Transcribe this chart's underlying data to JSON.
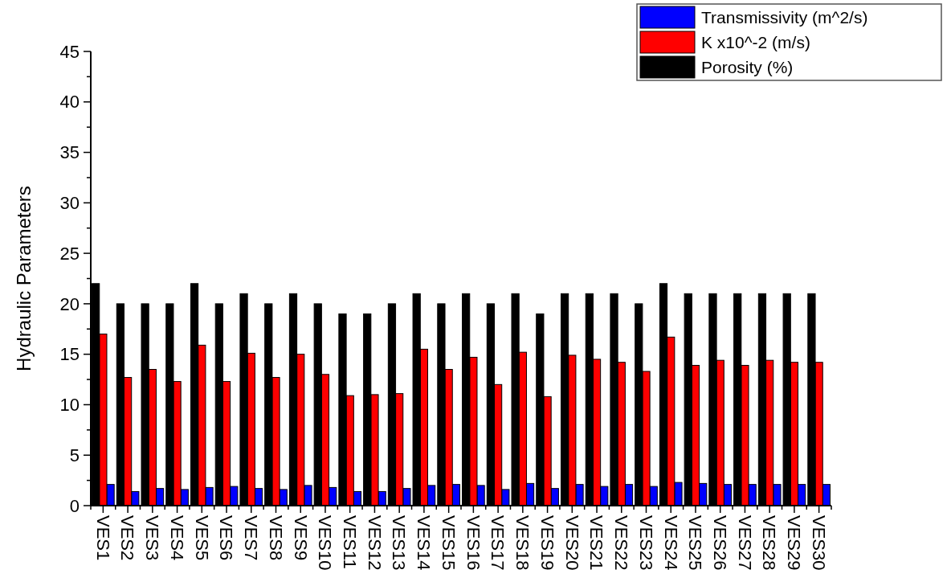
{
  "chart_data": {
    "type": "bar",
    "ylabel": "Hydraulic Parameters",
    "categories": [
      "VES1",
      "VES2",
      "VES3",
      "VES4",
      "VES5",
      "VES6",
      "VES7",
      "VES8",
      "VES9",
      "VES10",
      "VES11",
      "VES12",
      "VES13",
      "VES14",
      "VES15",
      "VES16",
      "VES17",
      "VES18",
      "VES19",
      "VES20",
      "VES21",
      "VES22",
      "VES23",
      "VES24",
      "VES25",
      "VES26",
      "VES27",
      "VES28",
      "VES29",
      "VES30"
    ],
    "series": [
      {
        "name": "Transmissivity (m^2/s)",
        "color": "#0000ff",
        "values": [
          2.1,
          1.4,
          1.7,
          1.6,
          1.8,
          1.9,
          1.7,
          1.6,
          2.0,
          1.8,
          1.4,
          1.4,
          1.7,
          2.0,
          2.1,
          2.0,
          1.6,
          2.2,
          1.7,
          2.1,
          1.9,
          2.1,
          1.9,
          2.3,
          2.2,
          2.1,
          2.1,
          2.1,
          2.1,
          2.1
        ]
      },
      {
        "name": "K x10^-2 (m/s)",
        "color": "#ff0000",
        "values": [
          17,
          12.7,
          13.5,
          12.3,
          15.9,
          12.3,
          15.1,
          12.7,
          15,
          13,
          10.9,
          11,
          11.1,
          15.5,
          13.5,
          14.7,
          12,
          15.2,
          10.8,
          14.9,
          14.5,
          14.2,
          13.3,
          16.7,
          13.9,
          14.4,
          13.9,
          14.4,
          14.2,
          14.2
        ]
      },
      {
        "name": "Porosity (%)",
        "color": "#000000",
        "values": [
          22,
          20,
          20,
          20,
          22,
          20,
          21,
          20,
          21,
          20,
          19,
          19,
          20,
          21,
          20,
          21,
          20,
          21,
          19,
          21,
          21,
          21,
          20,
          22,
          21,
          21,
          21,
          21,
          21,
          21
        ]
      }
    ],
    "ylim": [
      0,
      45
    ],
    "yticks": [
      0,
      {
        "value": 2.5,
        "label": null
      },
      5,
      {
        "value": 7.5,
        "label": null
      },
      10,
      {
        "value": 12.5,
        "label": null
      },
      15,
      {
        "value": 17.5,
        "label": null
      },
      20,
      {
        "value": 22.5,
        "label": null
      },
      25,
      {
        "value": 27.5,
        "label": null
      },
      30,
      {
        "value": 32.5,
        "label": null
      },
      35,
      {
        "value": 37.5,
        "label": null
      },
      40,
      {
        "value": 42.5,
        "label": null
      },
      45
    ],
    "legend": "top right"
  }
}
